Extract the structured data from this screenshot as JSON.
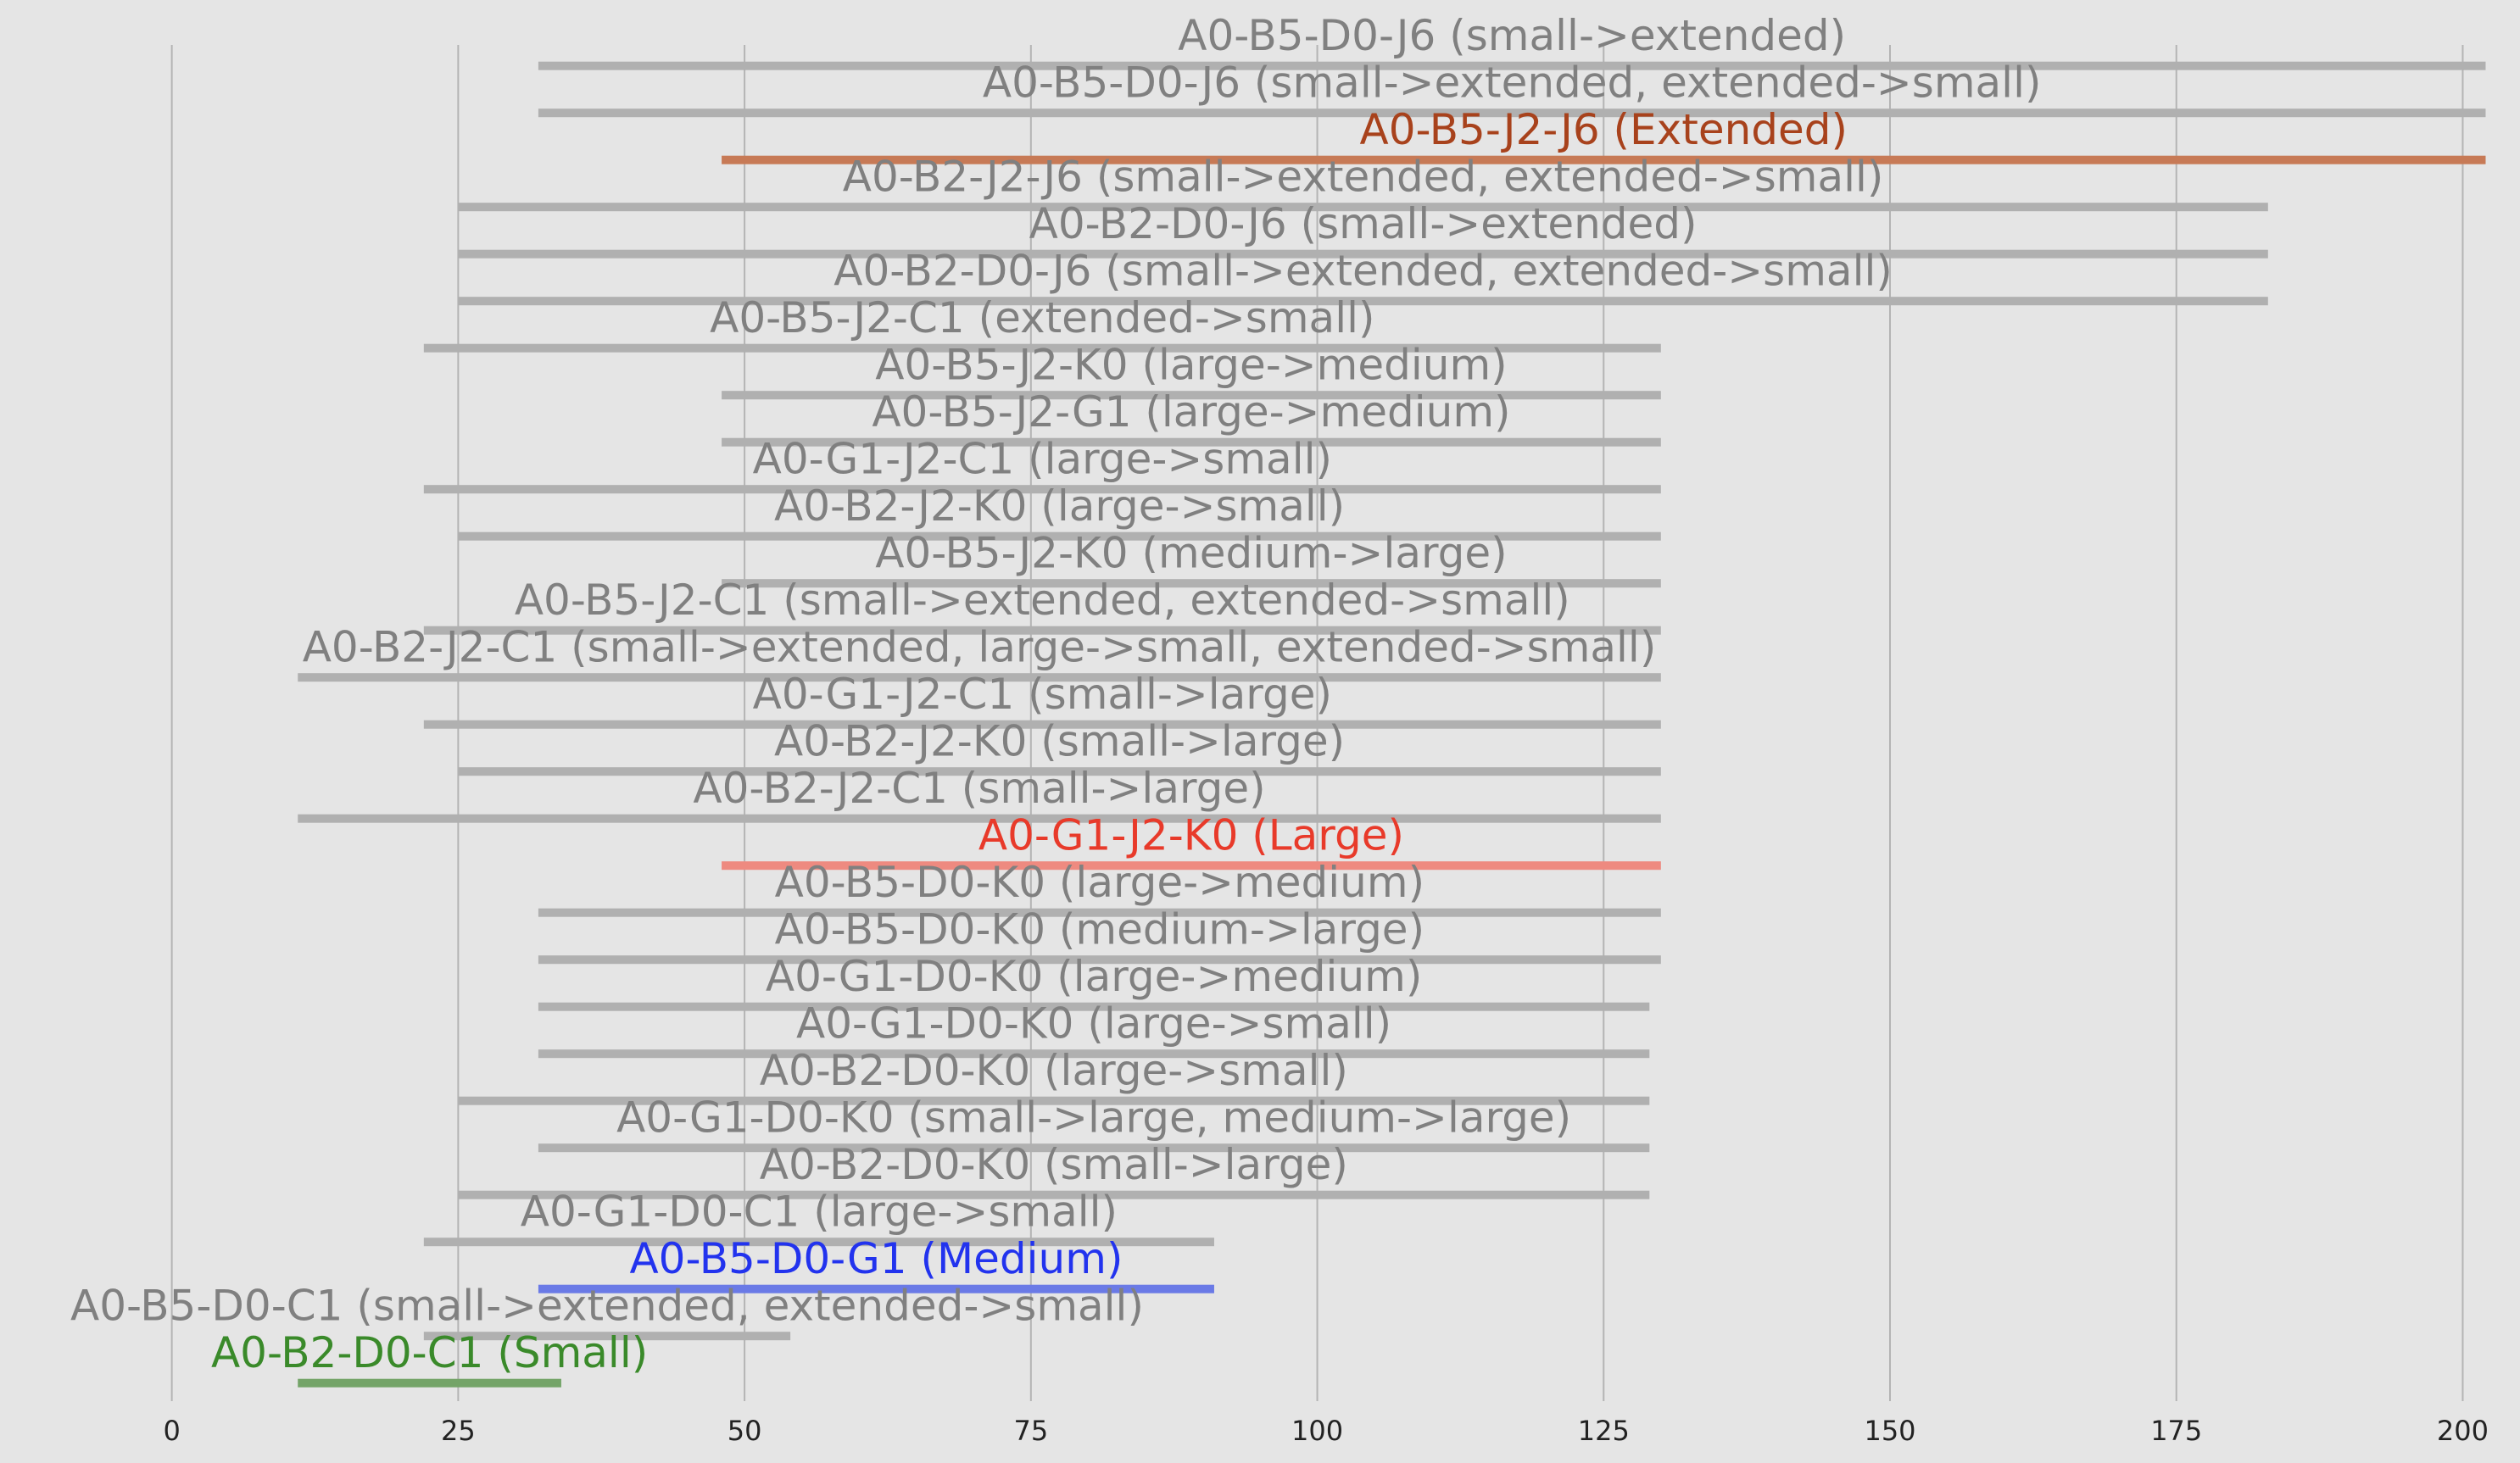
{
  "chart_data": {
    "type": "range",
    "categories": [
      "A0-B5-D0-J6 (small->extended)",
      "A0-B5-D0-J6 (small->extended, extended->small)",
      "A0-B5-J2-J6 (Extended)",
      "A0-B2-J2-J6 (small->extended, extended->small)",
      "A0-B2-D0-J6 (small->extended)",
      "A0-B2-D0-J6 (small->extended, extended->small)",
      "A0-B5-J2-C1 (extended->small)",
      "A0-B5-J2-K0 (large->medium)",
      "A0-B5-J2-G1 (large->medium)",
      "A0-G1-J2-C1 (large->small)",
      "A0-B2-J2-K0 (large->small)",
      "A0-B5-J2-K0 (medium->large)",
      "A0-B5-J2-C1 (small->extended, extended->small)",
      "A0-B2-J2-C1 (small->extended, large->small, extended->small)",
      "A0-G1-J2-C1 (small->large)",
      "A0-B2-J2-K0 (small->large)",
      "A0-B2-J2-C1 (small->large)",
      "A0-G1-J2-K0 (Large)",
      "A0-B5-D0-K0 (large->medium)",
      "A0-B5-D0-K0 (medium->large)",
      "A0-G1-D0-K0 (large->medium)",
      "A0-G1-D0-K0 (large->small)",
      "A0-B2-D0-K0 (large->small)",
      "A0-G1-D0-K0 (small->large, medium->large)",
      "A0-B2-D0-K0 (small->large)",
      "A0-G1-D0-C1 (large->small)",
      "A0-B5-D0-G1 (Medium)",
      "A0-B5-D0-C1 (small->extended, extended->small)",
      "A0-B2-D0-C1 (Small)"
    ],
    "starts": [
      32,
      32,
      48,
      25,
      25,
      25,
      22,
      48,
      48,
      22,
      25,
      48,
      22,
      11,
      22,
      25,
      11,
      48,
      32,
      32,
      32,
      32,
      25,
      32,
      25,
      22,
      32,
      22,
      11
    ],
    "ends": [
      202,
      202,
      202,
      183,
      183,
      183,
      130,
      130,
      130,
      130,
      130,
      130,
      130,
      130,
      130,
      130,
      130,
      130,
      130,
      130,
      129,
      129,
      129,
      129,
      129,
      91,
      91,
      54,
      34
    ],
    "bar_colors": [
      "#b0b0b0",
      "#b0b0b0",
      "#c77a56",
      "#b0b0b0",
      "#b0b0b0",
      "#b0b0b0",
      "#b0b0b0",
      "#b0b0b0",
      "#b0b0b0",
      "#b0b0b0",
      "#b0b0b0",
      "#b0b0b0",
      "#b0b0b0",
      "#b0b0b0",
      "#b0b0b0",
      "#b0b0b0",
      "#b0b0b0",
      "#ee8a80",
      "#b0b0b0",
      "#b0b0b0",
      "#b0b0b0",
      "#b0b0b0",
      "#b0b0b0",
      "#b0b0b0",
      "#b0b0b0",
      "#b0b0b0",
      "#6a7ae6",
      "#b0b0b0",
      "#74a468"
    ],
    "label_colors": [
      "#808080",
      "#808080",
      "#a8421c",
      "#808080",
      "#808080",
      "#808080",
      "#808080",
      "#808080",
      "#808080",
      "#808080",
      "#808080",
      "#808080",
      "#808080",
      "#808080",
      "#808080",
      "#808080",
      "#808080",
      "#e83a2a",
      "#808080",
      "#808080",
      "#808080",
      "#808080",
      "#808080",
      "#808080",
      "#808080",
      "#808080",
      "#2233ee",
      "#808080",
      "#3a8a2a"
    ],
    "xlim": [
      -15,
      205
    ],
    "xticks": [
      0,
      25,
      50,
      75,
      100,
      125,
      150,
      175,
      200
    ],
    "grid": true
  }
}
